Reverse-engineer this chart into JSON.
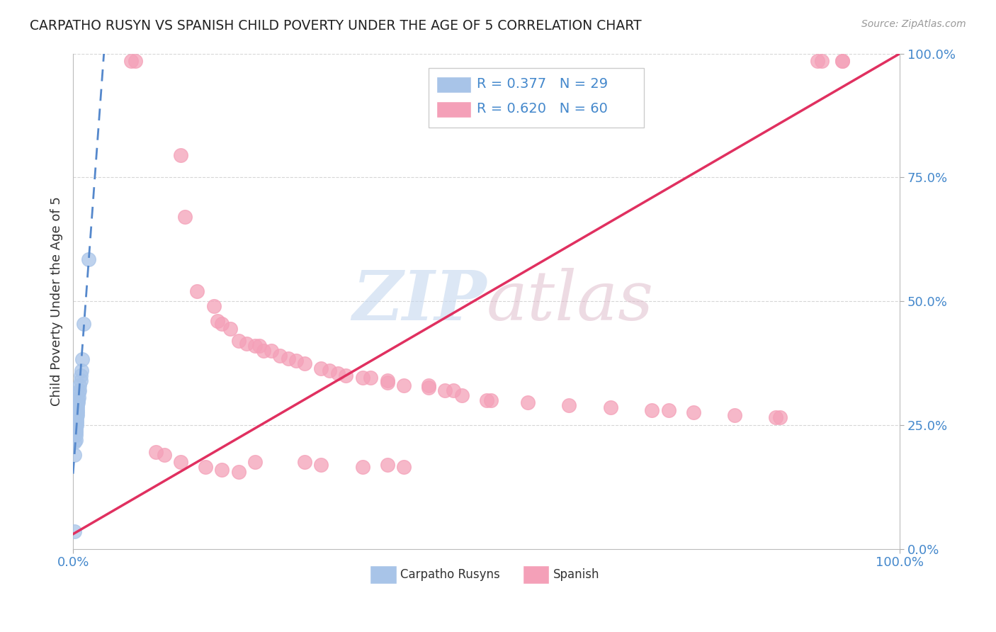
{
  "title": "CARPATHO RUSYN VS SPANISH CHILD POVERTY UNDER THE AGE OF 5 CORRELATION CHART",
  "source": "Source: ZipAtlas.com",
  "ylabel": "Child Poverty Under the Age of 5",
  "xlim": [
    0,
    1
  ],
  "ylim": [
    0,
    1
  ],
  "yticks": [
    0.0,
    0.25,
    0.5,
    0.75,
    1.0
  ],
  "yticklabels": [
    "0.0%",
    "25.0%",
    "50.0%",
    "75.0%",
    "100.0%"
  ],
  "legend_r1": "R = 0.377",
  "legend_n1": "N = 29",
  "legend_r2": "R = 0.620",
  "legend_n2": "N = 60",
  "series1_color": "#a8c4e8",
  "series2_color": "#f4a0b8",
  "line1_color": "#5588cc",
  "line2_color": "#e03060",
  "background_color": "#ffffff",
  "grid_color": "#cccccc",
  "carpatho_x": [
    0.019,
    0.013,
    0.011,
    0.01,
    0.009,
    0.009,
    0.008,
    0.008,
    0.007,
    0.007,
    0.006,
    0.006,
    0.005,
    0.005,
    0.005,
    0.005,
    0.005,
    0.004,
    0.004,
    0.004,
    0.004,
    0.003,
    0.003,
    0.003,
    0.003,
    0.003,
    0.002,
    0.002,
    0.002
  ],
  "carpatho_y": [
    0.585,
    0.455,
    0.383,
    0.36,
    0.35,
    0.34,
    0.33,
    0.32,
    0.315,
    0.305,
    0.3,
    0.295,
    0.29,
    0.285,
    0.28,
    0.275,
    0.27,
    0.265,
    0.26,
    0.255,
    0.25,
    0.245,
    0.24,
    0.235,
    0.23,
    0.22,
    0.215,
    0.19,
    0.035
  ],
  "spanish_x": [
    0.07,
    0.075,
    0.13,
    0.135,
    0.15,
    0.17,
    0.175,
    0.18,
    0.19,
    0.2,
    0.21,
    0.22,
    0.225,
    0.23,
    0.24,
    0.25,
    0.26,
    0.27,
    0.28,
    0.3,
    0.31,
    0.32,
    0.33,
    0.35,
    0.36,
    0.38,
    0.38,
    0.4,
    0.43,
    0.43,
    0.45,
    0.46,
    0.47,
    0.5,
    0.505,
    0.55,
    0.6,
    0.65,
    0.7,
    0.72,
    0.75,
    0.8,
    0.85,
    0.855,
    0.9,
    0.905,
    0.93,
    0.93,
    0.1,
    0.11,
    0.13,
    0.16,
    0.18,
    0.2,
    0.22,
    0.28,
    0.3,
    0.35,
    0.38,
    0.4
  ],
  "spanish_y": [
    0.985,
    0.985,
    0.795,
    0.67,
    0.52,
    0.49,
    0.46,
    0.455,
    0.445,
    0.42,
    0.415,
    0.41,
    0.41,
    0.4,
    0.4,
    0.39,
    0.385,
    0.38,
    0.375,
    0.365,
    0.36,
    0.355,
    0.35,
    0.345,
    0.345,
    0.34,
    0.335,
    0.33,
    0.33,
    0.325,
    0.32,
    0.32,
    0.31,
    0.3,
    0.3,
    0.295,
    0.29,
    0.285,
    0.28,
    0.28,
    0.275,
    0.27,
    0.265,
    0.265,
    0.985,
    0.985,
    0.985,
    0.985,
    0.195,
    0.19,
    0.175,
    0.165,
    0.16,
    0.155,
    0.175,
    0.175,
    0.17,
    0.165,
    0.17,
    0.165
  ],
  "line2_x0": 0.0,
  "line2_y0": 0.03,
  "line2_x1": 1.0,
  "line2_y1": 1.0
}
